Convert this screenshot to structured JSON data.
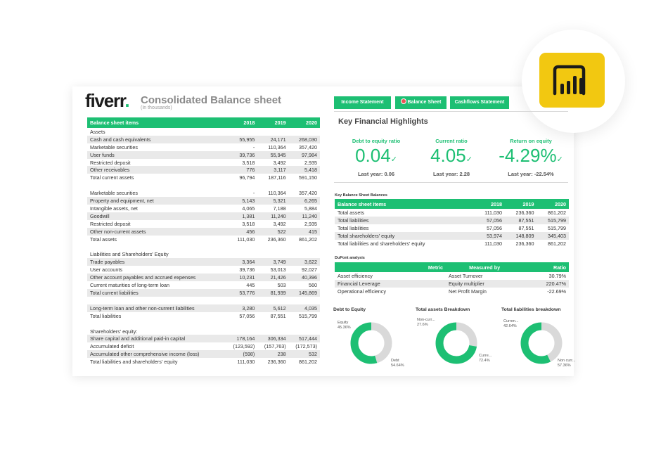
{
  "brand": {
    "logo_text": "fiverr",
    "logo_dot": ".",
    "accent": "#1dbf73",
    "pbi_color": "#f2c811"
  },
  "header": {
    "title": "Consolidated Balance sheet",
    "subtitle": "(In thousands)"
  },
  "balance_sheet": {
    "headers": [
      "Balance sheet items",
      "2018",
      "2019",
      "2020"
    ],
    "rows": [
      [
        "Assets",
        "",
        "",
        ""
      ],
      [
        "Cash and cash equivalents",
        "55,955",
        "24,171",
        "268,030"
      ],
      [
        "Marketable securities",
        "-",
        "110,364",
        "357,420"
      ],
      [
        "User funds",
        "39,736",
        "55,945",
        "97,984"
      ],
      [
        "Restricted deposit",
        "3,518",
        "3,492",
        "2,935"
      ],
      [
        "Other receivables",
        "776",
        "3,117",
        "5,418"
      ],
      [
        "Total current assets",
        "96,794",
        "187,116",
        "591,150"
      ],
      [
        "",
        "",
        "",
        ""
      ],
      [
        "Marketable securities",
        "-",
        "110,364",
        "357,420"
      ],
      [
        "Property and equipment, net",
        "5,143",
        "5,321",
        "6,265"
      ],
      [
        "Intangible assets, net",
        "4,065",
        "7,188",
        "5,884"
      ],
      [
        "Goodwill",
        "1,381",
        "11,240",
        "11,240"
      ],
      [
        "Restricted deposit",
        "3,518",
        "3,492",
        "2,935"
      ],
      [
        "Other non-current assets",
        "456",
        "522",
        "415"
      ],
      [
        "Total assets",
        "111,030",
        "236,360",
        "861,202"
      ],
      [
        "",
        "",
        "",
        ""
      ],
      [
        "Liabilities and Shareholders' Equity",
        "",
        "",
        ""
      ],
      [
        "Trade payables",
        "3,364",
        "3,749",
        "3,622"
      ],
      [
        "User accounts",
        "39,736",
        "53,013",
        "92,027"
      ],
      [
        "Other account payables and accrued expenses",
        "10,231",
        "21,426",
        "40,396"
      ],
      [
        "Current maturities of long-term loan",
        "445",
        "503",
        "560"
      ],
      [
        "Total current liabilities",
        "53,776",
        "81,939",
        "145,869"
      ],
      [
        "",
        "",
        "",
        ""
      ],
      [
        "Long-term loan and other non-current liabilities",
        "3,280",
        "5,612",
        "4,035"
      ],
      [
        "Total liabilities",
        "57,056",
        "87,551",
        "515,799"
      ],
      [
        "",
        "",
        "",
        ""
      ],
      [
        "Shareholders' equity:",
        "",
        "",
        ""
      ],
      [
        "Share capital and additional paid-in capital",
        "178,164",
        "306,334",
        "517,444"
      ],
      [
        "Accumulated deficit",
        "(123,592)",
        "(157,763)",
        "(172,573)"
      ],
      [
        "Accumulated other comprehensive income (loss)",
        "(598)",
        "238",
        "532"
      ],
      [
        "Total liabilities and shareholders' equity",
        "111,030",
        "236,360",
        "861,202"
      ]
    ]
  },
  "tabs": [
    {
      "label": "Income Statement",
      "icon": ""
    },
    {
      "label": "Balance Sheet",
      "icon": "target-icon"
    },
    {
      "label": "Cashflows Statement",
      "icon": ""
    }
  ],
  "highlights": {
    "title": "Key Financial Highlights"
  },
  "kpis": [
    {
      "label": "Debt to equity ratio",
      "value": "0.04",
      "last_year": "Last year: 0.06"
    },
    {
      "label": "Current ratio",
      "value": "4.05",
      "last_year": "Last year: 2.28"
    },
    {
      "label": "Return on equity",
      "value": "-4.29%",
      "last_year": "Last year: -22.54%"
    }
  ],
  "key_balances": {
    "title": "Key Balance Sheet Balances",
    "headers": [
      "Balance sheet items",
      "2018",
      "2019",
      "2020"
    ],
    "rows": [
      [
        "Total assets",
        "111,030",
        "236,360",
        "861,202"
      ],
      [
        "Total liabilities",
        "57,056",
        "87,551",
        "515,799"
      ],
      [
        "Total liabilities",
        "57,056",
        "87,551",
        "515,799"
      ],
      [
        "Total shareholders' equity",
        "53,974",
        "148,809",
        "345,403"
      ],
      [
        "Total liabilities and shareholders' equity",
        "111,030",
        "236,360",
        "861,202"
      ]
    ]
  },
  "dupont": {
    "title": "DuPont analysis",
    "headers": [
      "Metric",
      "Measured by",
      "Ratio"
    ],
    "rows": [
      [
        "Asset efficiency",
        "Asset Turnover",
        "30.79%"
      ],
      [
        "Financial Leverage",
        "Equity multiplier",
        "220.47%"
      ],
      [
        "Operational efficiency",
        "Net Profit Margin",
        "-22.69%"
      ]
    ]
  },
  "donuts": [
    {
      "title": "Debt to Equity",
      "segments": [
        {
          "label": "Equity",
          "pct": "45.36%",
          "value": 45.36,
          "color": "#d9d9d9"
        },
        {
          "label": "Debt",
          "pct": "54.64%",
          "value": 54.64,
          "color": "#1dbf73"
        }
      ]
    },
    {
      "title": "Total assets Breakdown",
      "segments": [
        {
          "label": "Non-curr...",
          "pct": "27.6%",
          "value": 27.6,
          "color": "#d9d9d9"
        },
        {
          "label": "Curre...",
          "pct": "72.4%",
          "value": 72.4,
          "color": "#1dbf73"
        }
      ]
    },
    {
      "title": "Total liabilities breakdown",
      "segments": [
        {
          "label": "Curren...",
          "pct": "42.64%",
          "value": 42.64,
          "color": "#d9d9d9"
        },
        {
          "label": "Non curr...",
          "pct": "57.36%",
          "value": 57.36,
          "color": "#1dbf73"
        }
      ]
    }
  ]
}
